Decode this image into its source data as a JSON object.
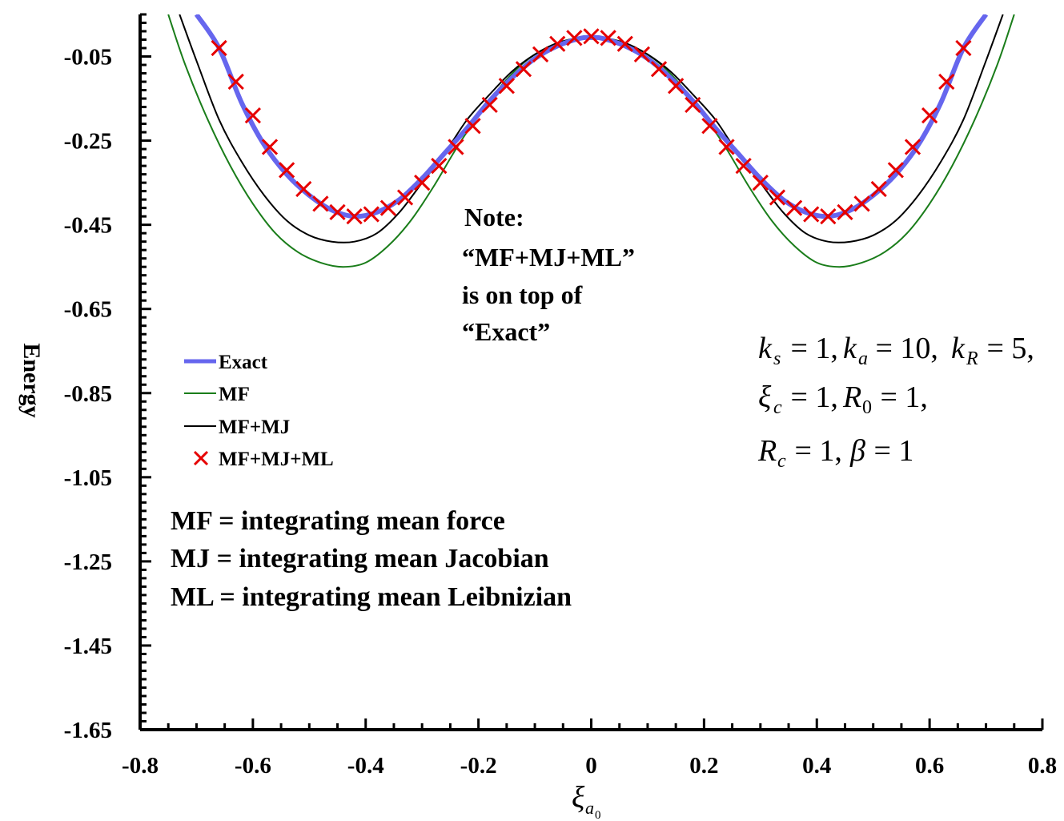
{
  "chart_data": {
    "type": "line",
    "xlabel": "ξ_{a_0}",
    "xlabel_main": "ξ",
    "xlabel_sub": "a",
    "xlabel_subsub": "0",
    "ylabel": "Energy",
    "xlim": [
      -0.8,
      0.8
    ],
    "ylim": [
      -1.65,
      0.05
    ],
    "xticks": [
      -0.8,
      -0.6,
      -0.4,
      -0.2,
      0,
      0.2,
      0.4,
      0.6,
      0.8
    ],
    "xtick_labels": [
      "-0.8",
      "-0.6",
      "-0.4",
      "-0.2",
      "0",
      "0.2",
      "0.4",
      "0.6",
      "0.8"
    ],
    "yticks": [
      -0.05,
      -0.25,
      -0.45,
      -0.65,
      -0.85,
      -1.05,
      -1.25,
      -1.45,
      -1.65
    ],
    "ytick_labels": [
      "-0.05",
      "-0.25",
      "-0.45",
      "-0.65",
      "-0.85",
      "-1.05",
      "-1.25",
      "-1.45",
      "-1.65"
    ],
    "series": [
      {
        "name": "Exact",
        "style": "line",
        "color": "#6666ee",
        "x": [
          -0.7,
          -0.66,
          -0.62,
          -0.58,
          -0.54,
          -0.5,
          -0.46,
          -0.42,
          -0.38,
          -0.34,
          -0.3,
          -0.26,
          -0.22,
          -0.18,
          -0.14,
          -0.1,
          -0.06,
          -0.02,
          0,
          0.02,
          0.06,
          0.1,
          0.14,
          0.18,
          0.22,
          0.26,
          0.3,
          0.34,
          0.38,
          0.42,
          0.46,
          0.5,
          0.54,
          0.58,
          0.62,
          0.66,
          0.7
        ],
        "y": [
          0.05,
          -0.03,
          -0.16,
          -0.26,
          -0.33,
          -0.38,
          -0.415,
          -0.43,
          -0.42,
          -0.39,
          -0.34,
          -0.28,
          -0.22,
          -0.155,
          -0.1,
          -0.055,
          -0.025,
          -0.007,
          -0.005,
          -0.007,
          -0.025,
          -0.055,
          -0.1,
          -0.155,
          -0.22,
          -0.28,
          -0.34,
          -0.39,
          -0.42,
          -0.43,
          -0.415,
          -0.38,
          -0.33,
          -0.26,
          -0.16,
          -0.03,
          0.05
        ]
      },
      {
        "name": "MF",
        "style": "line",
        "color": "#1a7d1a",
        "x": [
          -0.75,
          -0.72,
          -0.68,
          -0.64,
          -0.6,
          -0.56,
          -0.52,
          -0.48,
          -0.44,
          -0.4,
          -0.36,
          -0.32,
          -0.28,
          -0.24,
          -0.2,
          -0.16,
          -0.12,
          -0.08,
          -0.04,
          0,
          0.04,
          0.08,
          0.12,
          0.16,
          0.2,
          0.24,
          0.28,
          0.32,
          0.36,
          0.4,
          0.44,
          0.48,
          0.52,
          0.56,
          0.6,
          0.64,
          0.68,
          0.72,
          0.75
        ],
        "y": [
          0.05,
          -0.07,
          -0.2,
          -0.31,
          -0.4,
          -0.47,
          -0.515,
          -0.54,
          -0.55,
          -0.54,
          -0.5,
          -0.44,
          -0.36,
          -0.27,
          -0.19,
          -0.12,
          -0.065,
          -0.03,
          -0.01,
          -0.005,
          -0.01,
          -0.03,
          -0.065,
          -0.12,
          -0.19,
          -0.27,
          -0.36,
          -0.44,
          -0.5,
          -0.54,
          -0.55,
          -0.54,
          -0.515,
          -0.47,
          -0.4,
          -0.31,
          -0.2,
          -0.07,
          0.05
        ]
      },
      {
        "name": "MF+MJ",
        "style": "line",
        "color": "#000000",
        "x": [
          -0.73,
          -0.7,
          -0.66,
          -0.62,
          -0.58,
          -0.54,
          -0.5,
          -0.46,
          -0.42,
          -0.38,
          -0.34,
          -0.3,
          -0.26,
          -0.22,
          -0.18,
          -0.14,
          -0.1,
          -0.06,
          -0.02,
          0,
          0.02,
          0.06,
          0.1,
          0.14,
          0.18,
          0.22,
          0.26,
          0.3,
          0.34,
          0.38,
          0.42,
          0.46,
          0.5,
          0.54,
          0.58,
          0.62,
          0.66,
          0.7,
          0.73
        ],
        "y": [
          0.05,
          -0.06,
          -0.2,
          -0.3,
          -0.38,
          -0.44,
          -0.475,
          -0.49,
          -0.49,
          -0.47,
          -0.42,
          -0.35,
          -0.28,
          -0.2,
          -0.14,
          -0.085,
          -0.045,
          -0.018,
          -0.006,
          -0.005,
          -0.006,
          -0.018,
          -0.045,
          -0.085,
          -0.14,
          -0.2,
          -0.28,
          -0.35,
          -0.42,
          -0.47,
          -0.49,
          -0.49,
          -0.475,
          -0.44,
          -0.38,
          -0.3,
          -0.2,
          -0.06,
          0.05
        ]
      },
      {
        "name": "MF+MJ+ML",
        "style": "markers",
        "marker": "x",
        "color": "#e60000",
        "x": [
          -0.66,
          -0.63,
          -0.6,
          -0.57,
          -0.54,
          -0.51,
          -0.48,
          -0.45,
          -0.42,
          -0.39,
          -0.36,
          -0.33,
          -0.3,
          -0.27,
          -0.24,
          -0.21,
          -0.18,
          -0.15,
          -0.12,
          -0.09,
          -0.06,
          -0.03,
          0,
          0.03,
          0.06,
          0.09,
          0.12,
          0.15,
          0.18,
          0.21,
          0.24,
          0.27,
          0.3,
          0.33,
          0.36,
          0.39,
          0.42,
          0.45,
          0.48,
          0.51,
          0.54,
          0.57,
          0.6,
          0.63,
          0.66
        ],
        "y": [
          -0.03,
          -0.11,
          -0.19,
          -0.265,
          -0.32,
          -0.365,
          -0.4,
          -0.42,
          -0.43,
          -0.425,
          -0.41,
          -0.385,
          -0.35,
          -0.31,
          -0.265,
          -0.215,
          -0.165,
          -0.12,
          -0.08,
          -0.045,
          -0.02,
          -0.006,
          -0.002,
          -0.006,
          -0.02,
          -0.045,
          -0.08,
          -0.12,
          -0.165,
          -0.215,
          -0.265,
          -0.31,
          -0.35,
          -0.385,
          -0.41,
          -0.425,
          -0.43,
          -0.42,
          -0.4,
          -0.365,
          -0.32,
          -0.265,
          -0.19,
          -0.11,
          -0.03
        ]
      }
    ],
    "legend": {
      "placement": "left-middle",
      "entries": [
        "Exact",
        "MF",
        "MF+MJ",
        "MF+MJ+ML"
      ]
    },
    "annotations": {
      "note_lines": [
        "Note:",
        "“MF+MJ+ML”",
        "is on top of",
        "“Exact”"
      ],
      "definitions": [
        "MF = integrating mean force",
        "MJ = integrating mean Jacobian",
        "ML = integrating mean Leibnizian"
      ]
    },
    "parameters": [
      [
        {
          "sym": "k",
          "sub": "s",
          "val": " = 1, "
        },
        {
          "sym": "k",
          "sub": "a",
          "val": " = 10, "
        },
        {
          "sym": "k",
          "sub": "R",
          "val": " = 5,"
        }
      ],
      [
        {
          "sym": "ξ",
          "sub": "c",
          "val": " = 1, "
        },
        {
          "sym": "R",
          "sub": "0",
          "val": " = 1,"
        }
      ],
      [
        {
          "sym": "R",
          "sub": "c",
          "val": " = 1, "
        },
        {
          "sym": "β",
          "sub": "",
          "val": " = 1"
        }
      ]
    ],
    "grid": false
  }
}
